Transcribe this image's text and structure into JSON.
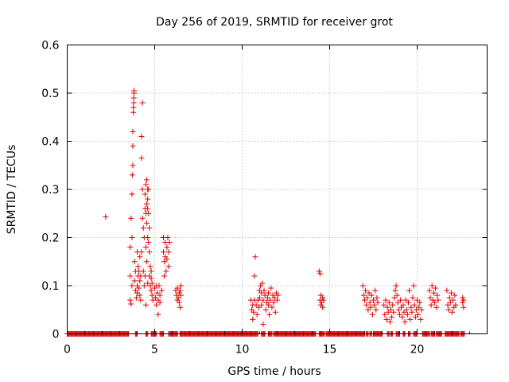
{
  "chart_data": {
    "type": "scatter",
    "title": "Day 256 of 2019, SRMTID for receiver grot",
    "xlabel": "GPS time / hours",
    "ylabel": "SRMTID / TECUs",
    "xlim": [
      0,
      24
    ],
    "ylim": [
      0,
      0.6
    ],
    "x_ticks": [
      0,
      5,
      10,
      15,
      20
    ],
    "x_tick_labels": [
      "0",
      "5",
      "10",
      "15",
      "20"
    ],
    "y_ticks": [
      0,
      0.1,
      0.2,
      0.3,
      0.4,
      0.5,
      0.6
    ],
    "y_tick_labels": [
      "0",
      "0.1",
      "0.2",
      "0.3",
      "0.4",
      "0.5",
      "0.6"
    ],
    "grid": true,
    "marker": "+",
    "marker_color": "#e00000",
    "series": [
      {
        "name": "SRMTID",
        "points": [
          [
            2.2,
            0.243
          ],
          [
            3.6,
            0.18
          ],
          [
            3.6,
            0.12
          ],
          [
            3.6,
            0.07
          ],
          [
            3.65,
            0.062
          ],
          [
            3.65,
            0.24
          ],
          [
            3.7,
            0.29
          ],
          [
            3.7,
            0.2
          ],
          [
            3.7,
            0.1
          ],
          [
            3.72,
            0.33
          ],
          [
            3.75,
            0.35
          ],
          [
            3.75,
            0.39
          ],
          [
            3.75,
            0.42
          ],
          [
            3.78,
            0.47
          ],
          [
            3.78,
            0.46
          ],
          [
            3.8,
            0.48
          ],
          [
            3.8,
            0.49
          ],
          [
            3.82,
            0.5
          ],
          [
            3.82,
            0.505
          ],
          [
            3.85,
            0.15
          ],
          [
            3.85,
            0.11
          ],
          [
            3.9,
            0.09
          ],
          [
            3.9,
            0.13
          ],
          [
            3.95,
            0.075
          ],
          [
            4.0,
            0.17
          ],
          [
            4.0,
            0.1
          ],
          [
            4.0,
            0.085
          ],
          [
            4.05,
            0.14
          ],
          [
            4.05,
            0.12
          ],
          [
            4.1,
            0.13
          ],
          [
            4.1,
            0.095
          ],
          [
            4.15,
            0.16
          ],
          [
            4.15,
            0.11
          ],
          [
            4.15,
            0.08
          ],
          [
            4.2,
            0.12
          ],
          [
            4.2,
            0.07
          ],
          [
            4.25,
            0.17
          ],
          [
            4.25,
            0.41
          ],
          [
            4.25,
            0.365
          ],
          [
            4.3,
            0.48
          ],
          [
            4.3,
            0.3
          ],
          [
            4.3,
            0.24
          ],
          [
            4.35,
            0.22
          ],
          [
            4.35,
            0.13
          ],
          [
            4.4,
            0.2
          ],
          [
            4.4,
            0.1
          ],
          [
            4.45,
            0.29
          ],
          [
            4.45,
            0.26
          ],
          [
            4.45,
            0.12
          ],
          [
            4.5,
            0.31
          ],
          [
            4.5,
            0.25
          ],
          [
            4.5,
            0.18
          ],
          [
            4.5,
            0.06
          ],
          [
            4.55,
            0.32
          ],
          [
            4.55,
            0.27
          ],
          [
            4.55,
            0.23
          ],
          [
            4.55,
            0.15
          ],
          [
            4.6,
            0.3
          ],
          [
            4.6,
            0.28
          ],
          [
            4.6,
            0.26
          ],
          [
            4.6,
            0.2
          ],
          [
            4.6,
            0.105
          ],
          [
            4.65,
            0.3
          ],
          [
            4.65,
            0.25
          ],
          [
            4.65,
            0.19
          ],
          [
            4.7,
            0.22
          ],
          [
            4.7,
            0.17
          ],
          [
            4.7,
            0.12
          ],
          [
            4.75,
            0.1
          ],
          [
            4.75,
            0.14
          ],
          [
            4.8,
            0.09
          ],
          [
            4.8,
            0.13
          ],
          [
            4.8,
            0.115
          ],
          [
            4.85,
            0.105
          ],
          [
            4.85,
            0.08
          ],
          [
            4.9,
            0.07
          ],
          [
            5.0,
            0.095
          ],
          [
            5.05,
            0.075
          ],
          [
            5.1,
            0.06
          ],
          [
            5.1,
            0.1
          ],
          [
            5.15,
            0.085
          ],
          [
            5.2,
            0.07
          ],
          [
            5.2,
            0.04
          ],
          [
            5.25,
            0.1
          ],
          [
            5.3,
            0.08
          ],
          [
            5.3,
            0.065
          ],
          [
            5.4,
            0.09
          ],
          [
            5.5,
            0.2
          ],
          [
            5.5,
            0.17
          ],
          [
            5.55,
            0.15
          ],
          [
            5.55,
            0.12
          ],
          [
            5.6,
            0.19
          ],
          [
            5.6,
            0.16
          ],
          [
            5.65,
            0.13
          ],
          [
            5.7,
            0.18
          ],
          [
            5.7,
            0.155
          ],
          [
            5.75,
            0.2
          ],
          [
            5.8,
            0.17
          ],
          [
            5.8,
            0.14
          ],
          [
            5.85,
            0.19
          ],
          [
            6.2,
            0.09
          ],
          [
            6.25,
            0.08
          ],
          [
            6.3,
            0.07
          ],
          [
            6.3,
            0.095
          ],
          [
            6.35,
            0.075
          ],
          [
            6.4,
            0.085
          ],
          [
            6.4,
            0.065
          ],
          [
            6.45,
            0.09
          ],
          [
            6.45,
            0.055
          ],
          [
            6.5,
            0.08
          ],
          [
            6.5,
            0.1
          ],
          [
            10.5,
            0.07
          ],
          [
            10.55,
            0.05
          ],
          [
            10.6,
            0.06
          ],
          [
            10.6,
            0.03
          ],
          [
            10.65,
            0.045
          ],
          [
            10.7,
            0.07
          ],
          [
            10.7,
            0.12
          ],
          [
            10.75,
            0.16
          ],
          [
            10.8,
            0.06
          ],
          [
            10.85,
            0.04
          ],
          [
            10.9,
            0.07
          ],
          [
            10.95,
            0.055
          ],
          [
            11.0,
            0.09
          ],
          [
            11.0,
            0.075
          ],
          [
            11.05,
            0.1
          ],
          [
            11.1,
            0.06
          ],
          [
            11.1,
            0.085
          ],
          [
            11.15,
            0.105
          ],
          [
            11.2,
            0.02
          ],
          [
            11.2,
            0.07
          ],
          [
            11.25,
            0.09
          ],
          [
            11.3,
            0.08
          ],
          [
            11.35,
            0.05
          ],
          [
            11.4,
            0.065
          ],
          [
            11.45,
            0.075
          ],
          [
            11.5,
            0.06
          ],
          [
            11.5,
            0.085
          ],
          [
            11.55,
            0.04
          ],
          [
            11.6,
            0.07
          ],
          [
            11.65,
            0.095
          ],
          [
            11.7,
            0.055
          ],
          [
            11.75,
            0.08
          ],
          [
            11.8,
            0.065
          ],
          [
            11.85,
            0.075
          ],
          [
            11.9,
            0.045
          ],
          [
            11.95,
            0.085
          ],
          [
            12.0,
            0.07
          ],
          [
            12.05,
            0.08
          ],
          [
            14.4,
            0.13
          ],
          [
            14.45,
            0.125
          ],
          [
            14.45,
            0.07
          ],
          [
            14.5,
            0.06
          ],
          [
            14.5,
            0.08
          ],
          [
            14.55,
            0.065
          ],
          [
            14.6,
            0.075
          ],
          [
            14.6,
            0.055
          ],
          [
            14.65,
            0.07
          ],
          [
            16.9,
            0.1
          ],
          [
            16.95,
            0.08
          ],
          [
            17.0,
            0.07
          ],
          [
            17.05,
            0.09
          ],
          [
            17.1,
            0.06
          ],
          [
            17.15,
            0.075
          ],
          [
            17.2,
            0.05
          ],
          [
            17.25,
            0.085
          ],
          [
            17.3,
            0.065
          ],
          [
            17.35,
            0.055
          ],
          [
            17.4,
            0.08
          ],
          [
            17.45,
            0.04
          ],
          [
            17.5,
            0.07
          ],
          [
            17.55,
            0.06
          ],
          [
            17.6,
            0.09
          ],
          [
            17.65,
            0.05
          ],
          [
            17.7,
            0.075
          ],
          [
            17.75,
            0.065
          ],
          [
            18.1,
            0.06
          ],
          [
            18.15,
            0.04
          ],
          [
            18.2,
            0.07
          ],
          [
            18.25,
            0.03
          ],
          [
            18.3,
            0.055
          ],
          [
            18.35,
            0.045
          ],
          [
            18.4,
            0.065
          ],
          [
            18.45,
            0.025
          ],
          [
            18.5,
            0.05
          ],
          [
            18.55,
            0.035
          ],
          [
            18.6,
            0.06
          ],
          [
            18.65,
            0.045
          ],
          [
            18.7,
            0.075
          ],
          [
            18.75,
            0.09
          ],
          [
            18.8,
            0.1
          ],
          [
            18.85,
            0.08
          ],
          [
            18.9,
            0.065
          ],
          [
            18.95,
            0.05
          ],
          [
            19.0,
            0.04
          ],
          [
            19.05,
            0.07
          ],
          [
            19.1,
            0.055
          ],
          [
            19.15,
            0.035
          ],
          [
            19.2,
            0.06
          ],
          [
            19.25,
            0.045
          ],
          [
            19.3,
            0.025
          ],
          [
            19.35,
            0.07
          ],
          [
            19.4,
            0.05
          ],
          [
            19.45,
            0.04
          ],
          [
            19.5,
            0.065
          ],
          [
            19.55,
            0.09
          ],
          [
            19.6,
            0.03
          ],
          [
            19.65,
            0.055
          ],
          [
            19.7,
            0.045
          ],
          [
            19.75,
            0.075
          ],
          [
            19.8,
            0.1
          ],
          [
            19.85,
            0.06
          ],
          [
            19.9,
            0.035
          ],
          [
            19.95,
            0.05
          ],
          [
            20.0,
            0.07
          ],
          [
            20.05,
            0.04
          ],
          [
            20.1,
            0.055
          ],
          [
            20.15,
            0.065
          ],
          [
            20.2,
            0.03
          ],
          [
            20.25,
            0.05
          ],
          [
            20.7,
            0.09
          ],
          [
            20.75,
            0.075
          ],
          [
            20.8,
            0.06
          ],
          [
            20.85,
            0.1
          ],
          [
            20.9,
            0.07
          ],
          [
            20.95,
            0.085
          ],
          [
            21.0,
            0.065
          ],
          [
            21.05,
            0.095
          ],
          [
            21.1,
            0.055
          ],
          [
            21.15,
            0.08
          ],
          [
            21.2,
            0.07
          ],
          [
            21.7,
            0.09
          ],
          [
            21.75,
            0.06
          ],
          [
            21.8,
            0.05
          ],
          [
            21.85,
            0.075
          ],
          [
            21.9,
            0.065
          ],
          [
            21.95,
            0.085
          ],
          [
            22.0,
            0.045
          ],
          [
            22.05,
            0.07
          ],
          [
            22.1,
            0.055
          ],
          [
            22.15,
            0.08
          ],
          [
            22.2,
            0.06
          ],
          [
            22.6,
            0.075
          ],
          [
            22.6,
            0.065
          ],
          [
            22.65,
            0.07
          ],
          [
            22.65,
            0.055
          ]
        ],
        "zero_segments": [
          [
            0.0,
            3.5
          ],
          [
            3.9,
            4.0
          ],
          [
            4.5,
            4.6
          ],
          [
            4.8,
            5.1
          ],
          [
            5.3,
            5.5
          ],
          [
            5.8,
            6.3
          ],
          [
            6.45,
            10.9
          ],
          [
            11.1,
            11.3
          ],
          [
            11.5,
            11.7
          ],
          [
            11.8,
            14.2
          ],
          [
            14.4,
            14.7
          ],
          [
            14.8,
            17.0
          ],
          [
            17.1,
            17.2
          ],
          [
            17.3,
            17.4
          ],
          [
            17.5,
            18.0
          ],
          [
            18.3,
            18.4
          ],
          [
            18.5,
            18.6
          ],
          [
            18.8,
            19.0
          ],
          [
            19.2,
            19.3
          ],
          [
            19.5,
            19.6
          ],
          [
            19.8,
            20.0
          ],
          [
            20.3,
            20.7
          ],
          [
            20.8,
            21.0
          ],
          [
            21.1,
            21.4
          ],
          [
            21.6,
            22.4
          ],
          [
            22.5,
            22.7
          ]
        ]
      }
    ]
  }
}
